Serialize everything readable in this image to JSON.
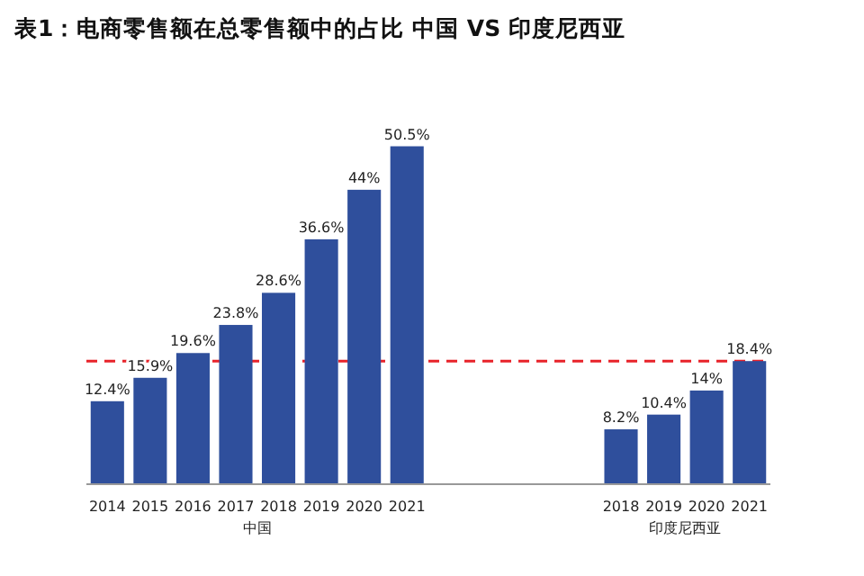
{
  "chart_data": {
    "type": "bar",
    "title": "表1：电商零售额在总零售额中的占比 中国 VS 印度尼西亚",
    "categories": [
      "2014",
      "2015",
      "2016",
      "2017",
      "2018",
      "2019",
      "2020",
      "2021",
      null,
      null,
      null,
      null,
      "2018",
      "2019",
      "2020",
      "2021"
    ],
    "values": [
      12.4,
      15.9,
      19.6,
      23.8,
      28.6,
      36.6,
      44,
      50.5,
      null,
      null,
      null,
      null,
      8.2,
      10.4,
      14,
      18.4
    ],
    "value_labels": [
      "12.4%",
      "15.9%",
      "19.6%",
      "23.8%",
      "28.6%",
      "36.6%",
      "44%",
      "50.5%",
      null,
      null,
      null,
      null,
      "8.2%",
      "10.4%",
      "14%",
      "18.4%"
    ],
    "color": "#2f4f9c",
    "ref_lines": [
      {
        "axis": "y",
        "value": 18.4,
        "color": "#e8232a",
        "line_style": "dashed"
      }
    ],
    "annotations": [
      "中国",
      "印度尼西亚"
    ]
  }
}
